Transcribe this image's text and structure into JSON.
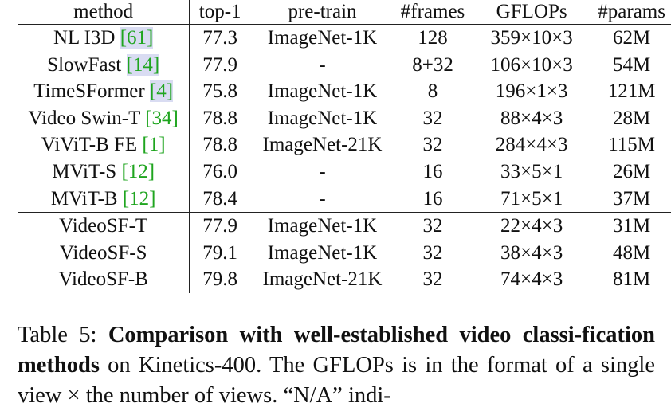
{
  "table": {
    "headers": {
      "method": "method",
      "top1": "top-1",
      "pretrain": "pre-train",
      "frames": "#frames",
      "gflops": "GFLOPs",
      "params": "#params"
    },
    "baselines": [
      {
        "method": "NL I3D",
        "ref": "[61]",
        "ref_boxed": true,
        "top1": "77.3",
        "pretrain": "ImageNet-1K",
        "frames": "128",
        "gflops": "359×10×3",
        "params": "62M"
      },
      {
        "method": "SlowFast",
        "ref": "[14]",
        "ref_boxed": true,
        "top1": "77.9",
        "pretrain": "-",
        "frames": "8+32",
        "gflops": "106×10×3",
        "params": "54M"
      },
      {
        "method": "TimeSFormer",
        "ref": "[4]",
        "ref_boxed": true,
        "top1": "75.8",
        "pretrain": "ImageNet-1K",
        "frames": "8",
        "gflops": "196×1×3",
        "params": "121M"
      },
      {
        "method": "Video Swin-T",
        "ref": "[34]",
        "ref_boxed": false,
        "top1": "78.8",
        "pretrain": "ImageNet-1K",
        "frames": "32",
        "gflops": "88×4×3",
        "params": "28M"
      },
      {
        "method": "ViViT-B FE",
        "ref": "[1]",
        "ref_boxed": false,
        "top1": "78.8",
        "pretrain": "ImageNet-21K",
        "frames": "32",
        "gflops": "284×4×3",
        "params": "115M"
      },
      {
        "method": "MViT-S",
        "ref": "[12]",
        "ref_boxed": false,
        "top1": "76.0",
        "pretrain": "-",
        "frames": "16",
        "gflops": "33×5×1",
        "params": "26M"
      },
      {
        "method": "MViT-B",
        "ref": "[12]",
        "ref_boxed": false,
        "top1": "78.4",
        "pretrain": "-",
        "frames": "16",
        "gflops": "71×5×1",
        "params": "37M"
      }
    ],
    "ours": [
      {
        "method": "VideoSF-T",
        "top1": "77.9",
        "pretrain": "ImageNet-1K",
        "frames": "32",
        "gflops": "22×4×3",
        "params": "31M"
      },
      {
        "method": "VideoSF-S",
        "top1": "79.1",
        "pretrain": "ImageNet-1K",
        "frames": "32",
        "gflops": "38×4×3",
        "params": "48M"
      },
      {
        "method": "VideoSF-B",
        "top1": "79.8",
        "pretrain": "ImageNet-21K",
        "frames": "32",
        "gflops": "74×4×3",
        "params": "81M"
      }
    ]
  },
  "caption": {
    "label": "Table 5: ",
    "bold": "Comparison with well-established video classi-fication methods",
    "rest": " on Kinetics-400.  The GFLOPs is in the format of a single view × the number of views. “N/A” indi-"
  }
}
